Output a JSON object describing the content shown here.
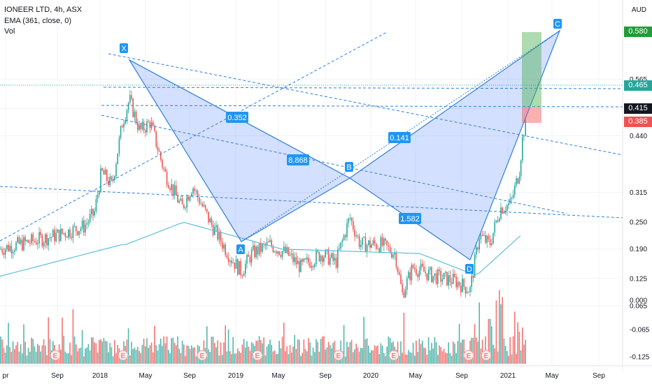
{
  "header": {
    "symbol_line": "IONEER LTD, 4h, ASX",
    "ema_line": "EMA (361, close, 0)",
    "vol_line": "Vol",
    "currency": "AUD"
  },
  "price_tags": {
    "target": "0.580",
    "current": "0.465",
    "level": "0.415",
    "stop": "0.385"
  },
  "colors": {
    "up": "#26a69a",
    "down": "#ef5350",
    "pattern_line": "#2f7fe0",
    "pattern_fill": "#2962ff",
    "ema": "#5bc0d8",
    "target_tag": "#1e9e3a",
    "current_tag": "#26a69a",
    "level_tag": "#131722",
    "stop_tag": "#ef5350"
  },
  "chart_data": {
    "type": "candlestick",
    "series_name": "IONEER LTD, 4h, ASX",
    "y_axis_ticks": [
      "0.565",
      "0.500",
      "0.440",
      "0.315",
      "0.250",
      "0.190",
      "0.125",
      "0.065"
    ],
    "volume_axis_ticks": [
      "0.000",
      "-0.065",
      "-0.125"
    ],
    "x_axis_ticks": [
      "pr",
      "Sep",
      "2018",
      "May",
      "Sep",
      "2019",
      "May",
      "Sep",
      "2020",
      "May",
      "Sep",
      "2021",
      "May",
      "Sep"
    ],
    "pattern_points": [
      {
        "label": "X",
        "y": 0.525
      },
      {
        "label": "A",
        "y": 0.13
      },
      {
        "label": "B",
        "y": 0.262
      },
      {
        "label": "D",
        "y": 0.095
      },
      {
        "label": "C",
        "y": 0.58
      }
    ],
    "ratio_labels": [
      "0.352",
      "8.868",
      "0.141",
      "1.582"
    ],
    "earnings_markers": [
      "E",
      "E",
      "E",
      "E",
      "E",
      "E",
      "E",
      "E"
    ],
    "position": {
      "entry": 0.415,
      "target": 0.58,
      "stop": 0.385
    },
    "ema": {
      "period": 361,
      "source": "close",
      "offset": 0
    }
  }
}
